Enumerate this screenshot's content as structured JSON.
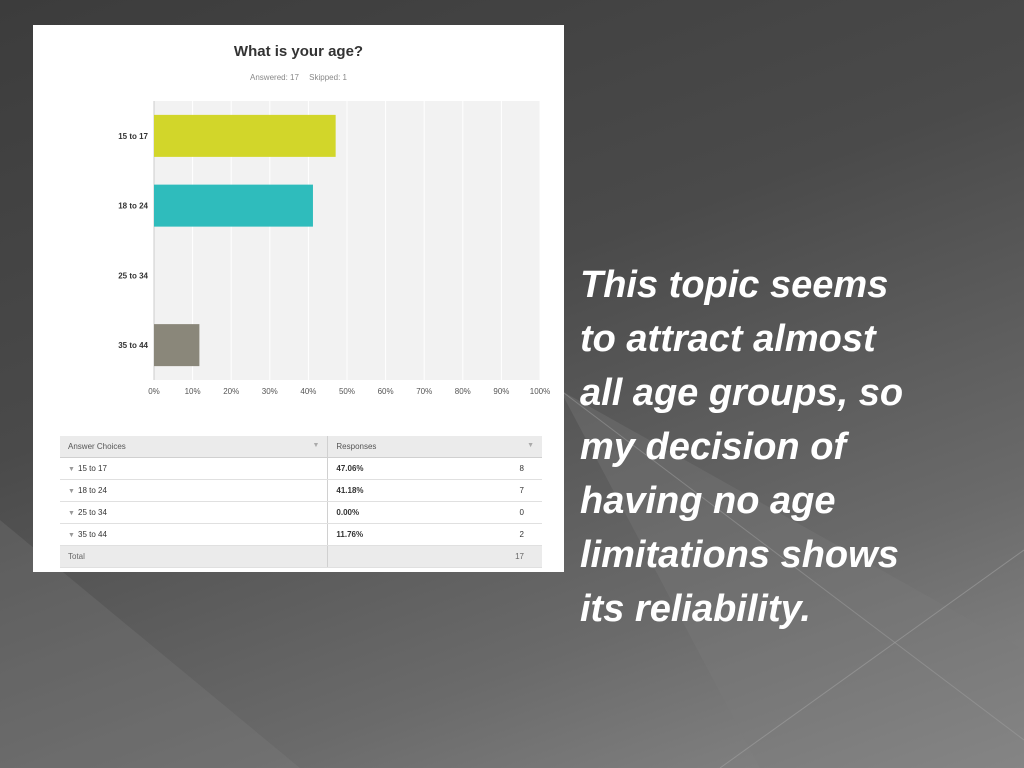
{
  "survey": {
    "title": "What is your age?",
    "answered": "Answered: 17",
    "skipped": "Skipped: 1"
  },
  "chart_data": {
    "type": "bar",
    "orientation": "horizontal",
    "categories": [
      "15 to 17",
      "18 to 24",
      "25 to 34",
      "35 to 44"
    ],
    "values": [
      47.06,
      41.18,
      0.0,
      11.76
    ],
    "colors": [
      "#d2d62a",
      "#2fbcbc",
      "#c9c9c9",
      "#8a877a"
    ],
    "xlim": [
      0,
      100
    ],
    "xticks": [
      "0%",
      "10%",
      "20%",
      "30%",
      "40%",
      "50%",
      "60%",
      "70%",
      "80%",
      "90%",
      "100%"
    ],
    "grid": true
  },
  "table": {
    "headers": [
      "Answer Choices",
      "Responses"
    ],
    "rows": [
      {
        "choice": "15 to 17",
        "percent": "47.06%",
        "count": "8"
      },
      {
        "choice": "18 to 24",
        "percent": "41.18%",
        "count": "7"
      },
      {
        "choice": "25 to 34",
        "percent": "0.00%",
        "count": "0"
      },
      {
        "choice": "35 to 44",
        "percent": "11.76%",
        "count": "2"
      }
    ],
    "total_label": "Total",
    "total_count": "17"
  },
  "slide": {
    "text": "This topic seems\nto attract almost\nall age groups, so\nmy decision of\nhaving no age\nlimitations shows\nits reliability."
  }
}
